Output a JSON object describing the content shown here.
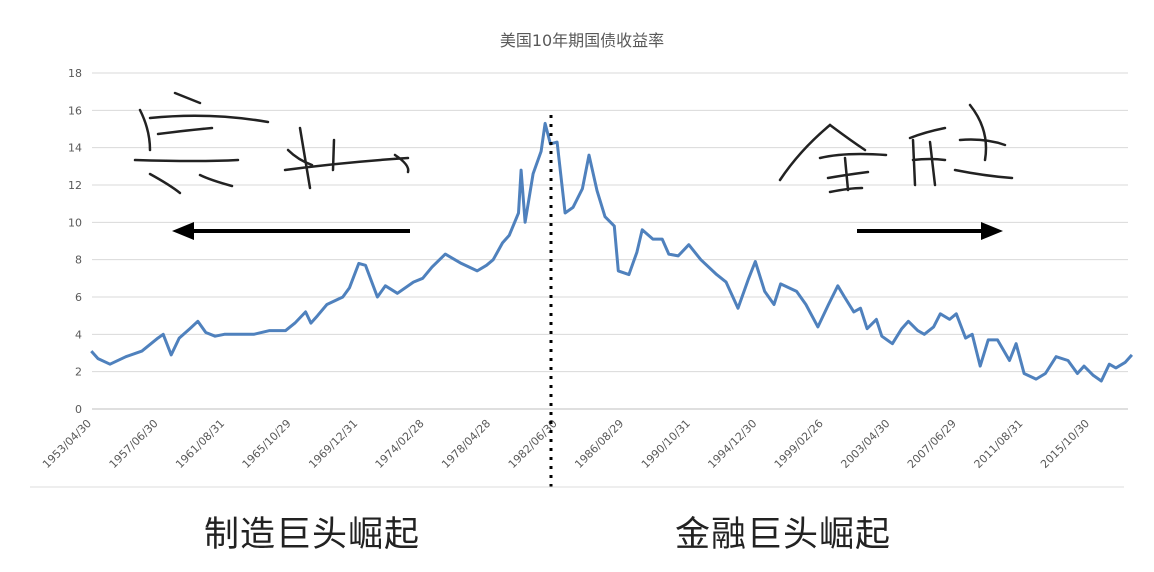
{
  "chart_data": {
    "type": "line",
    "title": "美国10年期国债收益率",
    "ylim": [
      0,
      18
    ],
    "yticks": [
      "0",
      "2",
      "4",
      "6",
      "8",
      "10",
      "12",
      "14",
      "16",
      "18"
    ],
    "x_tick_labels": [
      "1953/04/30",
      "1957/06/30",
      "1961/08/31",
      "1965/10/29",
      "1969/12/31",
      "1974/02/28",
      "1978/04/28",
      "1982/06/30",
      "1986/08/29",
      "1990/10/31",
      "1994/12/30",
      "1999/02/26",
      "2003/04/30",
      "2007/06/29",
      "2011/08/31",
      "2015/10/30"
    ],
    "grid": true,
    "legend": "none",
    "series": [
      {
        "color": "#4f81bd",
        "x": [
          "1953/04",
          "1953/09",
          "1954/06",
          "1955/06",
          "1956/06",
          "1957/06",
          "1957/10",
          "1958/04",
          "1958/10",
          "1959/06",
          "1959/12",
          "1960/06",
          "1961/01",
          "1961/08",
          "1962/06",
          "1963/06",
          "1964/06",
          "1965/06",
          "1966/01",
          "1966/09",
          "1967/01",
          "1967/06",
          "1968/01",
          "1969/01",
          "1969/06",
          "1970/01",
          "1970/06",
          "1971/03",
          "1971/09",
          "1972/06",
          "1973/06",
          "1974/01",
          "1974/08",
          "1975/06",
          "1976/06",
          "1977/06",
          "1978/01",
          "1978/06",
          "1979/01",
          "1979/06",
          "1980/01",
          "1980/03",
          "1980/06",
          "1980/12",
          "1981/06",
          "1981/09",
          "1982/01",
          "1982/06",
          "1982/12",
          "1983/06",
          "1984/01",
          "1984/06",
          "1984/12",
          "1985/06",
          "1986/01",
          "1986/04",
          "1986/12",
          "1987/06",
          "1987/10",
          "1988/06",
          "1989/01",
          "1989/06",
          "1990/01",
          "1990/09",
          "1991/06",
          "1992/06",
          "1993/01",
          "1993/10",
          "1994/06",
          "1994/11",
          "1995/06",
          "1996/01",
          "1996/06",
          "1997/06",
          "1998/01",
          "1998/10",
          "1999/06",
          "2000/01",
          "2000/06",
          "2001/01",
          "2001/06",
          "2001/11",
          "2002/06",
          "2002/10",
          "2003/06",
          "2004/01",
          "2004/06",
          "2005/01",
          "2005/06",
          "2006/01",
          "2006/06",
          "2007/01",
          "2007/06",
          "2008/01",
          "2008/06",
          "2008/12",
          "2009/06",
          "2010/01",
          "2010/10",
          "2011/03",
          "2011/09",
          "2012/06",
          "2013/01",
          "2013/09",
          "2014/06",
          "2015/01",
          "2015/06",
          "2016/01",
          "2016/07",
          "2017/01",
          "2017/06",
          "2018/01",
          "2018/06"
        ],
        "values": [
          3.1,
          2.7,
          2.4,
          2.8,
          3.1,
          3.8,
          4.0,
          2.9,
          3.8,
          4.3,
          4.7,
          4.1,
          3.9,
          4.0,
          4.0,
          4.0,
          4.2,
          4.2,
          4.6,
          5.2,
          4.6,
          5.0,
          5.6,
          6.0,
          6.5,
          7.8,
          7.7,
          6.0,
          6.6,
          6.2,
          6.8,
          7.0,
          7.6,
          8.3,
          7.8,
          7.4,
          7.7,
          8.0,
          8.9,
          9.3,
          10.5,
          12.8,
          10.0,
          12.6,
          13.8,
          15.3,
          14.2,
          14.3,
          10.5,
          10.8,
          11.8,
          13.6,
          11.7,
          10.3,
          9.8,
          7.4,
          7.2,
          8.4,
          9.6,
          9.1,
          9.1,
          8.3,
          8.2,
          8.8,
          8.0,
          7.2,
          6.8,
          5.4,
          7.0,
          7.9,
          6.3,
          5.6,
          6.7,
          6.3,
          5.6,
          4.4,
          5.6,
          6.6,
          6.0,
          5.2,
          5.4,
          4.3,
          4.8,
          3.9,
          3.5,
          4.3,
          4.7,
          4.2,
          4.0,
          4.4,
          5.1,
          4.8,
          5.1,
          3.8,
          4.0,
          2.3,
          3.7,
          3.7,
          2.6,
          3.5,
          1.9,
          1.6,
          1.9,
          2.8,
          2.6,
          1.9,
          2.3,
          1.8,
          1.5,
          2.4,
          2.2,
          2.5,
          2.9
        ]
      }
    ],
    "annotations": {
      "divider_at": "1982/06",
      "handwritten_left": "实业",
      "handwritten_right": "金融"
    }
  },
  "captions": {
    "left": "制造巨头崛起",
    "right": "金融巨头崛起"
  }
}
